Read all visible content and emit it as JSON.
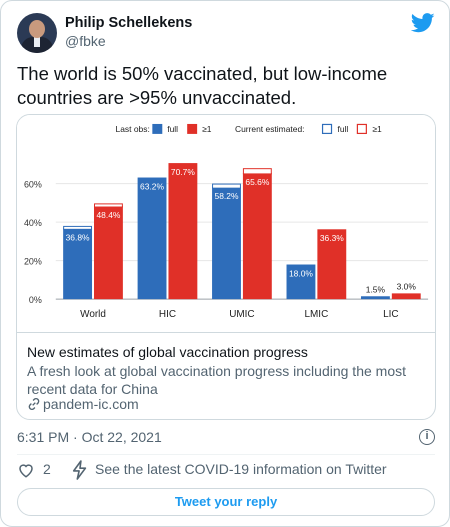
{
  "user": {
    "name": "Philip Schellekens",
    "handle": "@fbke"
  },
  "tweet": {
    "text": "The world is 50% vaccinated, but low-income countries are >95% unvaccinated."
  },
  "card": {
    "title": "New estimates of global vaccination progress",
    "description": "A fresh look at global vaccination progress including the most recent data for China",
    "link": "pandem-ic.com"
  },
  "meta": {
    "timestamp": "6:31 PM · Oct 22, 2021"
  },
  "actions": {
    "likes": "2",
    "covid_text": "See the latest COVID-19 information on Twitter"
  },
  "reply": {
    "label": "Tweet your reply"
  },
  "icons": {
    "logo": "twitter-bird-icon",
    "info": "info-icon",
    "like": "heart-icon",
    "covid": "lightning-icon",
    "link": "link-icon"
  },
  "colors": {
    "brand": "#1d9bf0",
    "full": "#2e6dba",
    "one_dose": "#e03028"
  },
  "chart_data": {
    "type": "bar",
    "categories": [
      "World",
      "HIC",
      "UMIC",
      "LMIC",
      "LIC"
    ],
    "series": [
      {
        "name": "full",
        "values": [
          36.8,
          63.2,
          58.2,
          18.0,
          1.5
        ],
        "current_estimated": [
          37.8,
          null,
          59.8,
          null,
          null
        ]
      },
      {
        "name": "≥1",
        "values": [
          48.4,
          70.7,
          65.6,
          36.3,
          3.0
        ],
        "current_estimated": [
          49.5,
          null,
          67.8,
          null,
          null
        ]
      }
    ],
    "data_labels": [
      [
        "36.8%",
        "63.2%",
        "58.2%",
        "18.0%",
        "1.5%"
      ],
      [
        "48.4%",
        "70.7%",
        "65.6%",
        "36.3%",
        "3.0%"
      ]
    ],
    "legend": {
      "last_obs": "Last obs:",
      "current": "Current estimated:",
      "full": "full",
      "one": "≥1"
    },
    "yticks": [
      "0%",
      "20%",
      "40%",
      "60%"
    ],
    "ylim": [
      0,
      75
    ],
    "grid": true,
    "legend_placement": "top"
  }
}
